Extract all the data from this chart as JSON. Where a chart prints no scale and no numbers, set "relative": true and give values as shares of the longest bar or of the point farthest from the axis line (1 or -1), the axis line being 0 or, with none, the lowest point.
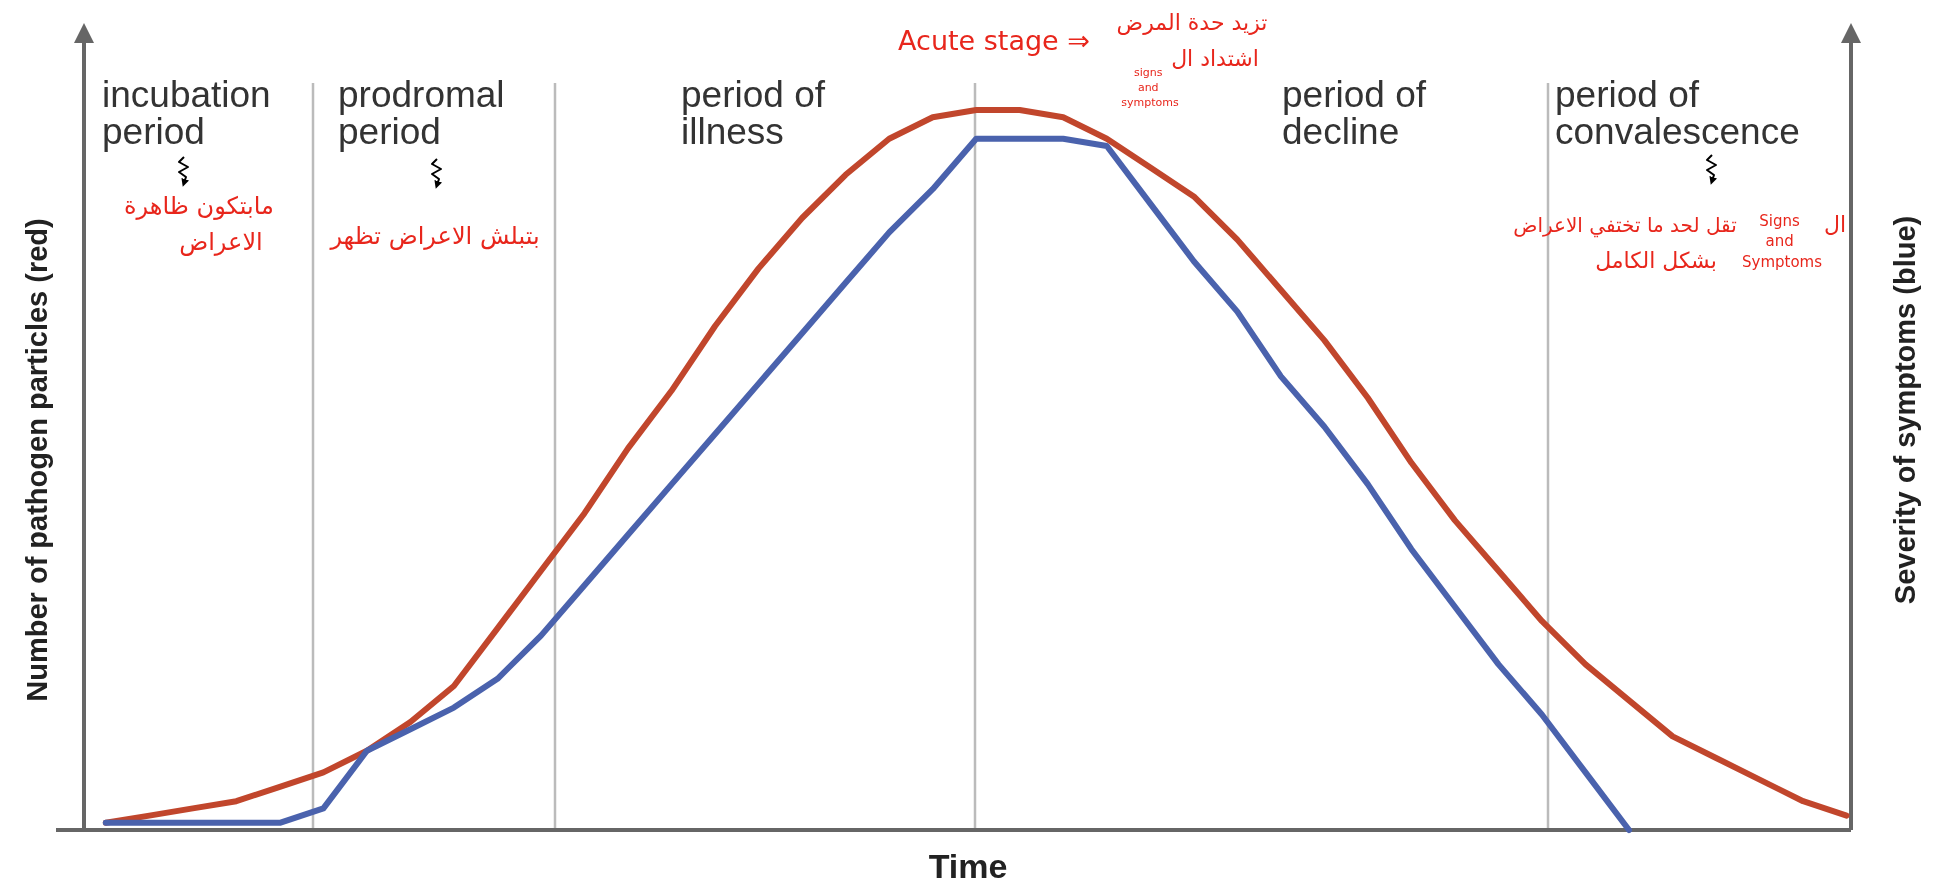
{
  "chart_data": {
    "type": "line",
    "xlabel": "Time",
    "ylabel": "Number of pathogen particles (red)",
    "y2label": "Severity of symptoms (blue)",
    "relative": true,
    "categories": [
      null,
      null,
      null,
      null,
      null,
      null,
      null,
      null,
      null,
      null,
      null,
      null,
      null,
      null,
      null,
      null,
      null,
      null,
      null,
      null,
      null,
      null,
      null,
      null,
      null,
      null,
      null,
      null,
      null,
      null,
      null,
      null,
      null,
      null,
      null,
      null,
      null,
      null,
      null,
      null,
      null
    ],
    "series": [
      {
        "color": "#c1462c",
        "values": [
          0.01,
          0.02,
          0.03,
          0.04,
          0.06,
          0.08,
          0.11,
          0.15,
          0.2,
          0.28,
          0.36,
          0.44,
          0.53,
          0.61,
          0.7,
          0.78,
          0.85,
          0.91,
          0.96,
          0.99,
          1,
          1,
          0.99,
          0.96,
          0.92,
          0.88,
          0.82,
          0.75,
          0.68,
          0.6,
          0.51,
          0.43,
          0.36,
          0.29,
          0.23,
          0.18,
          0.13,
          0.1,
          0.07,
          0.04,
          0.02
        ]
      },
      {
        "color": "#4a62ad",
        "values": [
          0.01,
          0.01,
          0.01,
          0.01,
          0.01,
          0.03,
          0.11,
          0.14,
          0.17,
          0.21,
          0.27,
          0.34,
          0.41,
          0.48,
          0.55,
          0.62,
          0.69,
          0.76,
          0.83,
          0.89,
          0.96,
          0.96,
          0.96,
          0.95,
          0.87,
          0.79,
          0.72,
          0.63,
          0.56,
          0.48,
          0.39,
          0.31,
          0.23,
          0.16,
          0.08,
          0,
          null,
          null,
          null,
          null,
          null
        ]
      }
    ],
    "annotations": [
      "incubation period",
      "prodromal period",
      "period of illness",
      "period of decline",
      "period of convalescence",
      "Acute stage ⇒",
      "تزيد حدة المرض",
      "اشتداد ال",
      "signs and symptoms",
      "مابتكون ظاهرة",
      "الاعراض",
      "بتبلش الاعراض تظهر",
      "تقل لحد ما تختفي الاعراض",
      "بشكل الكامل",
      "Signs and Symptoms",
      "ال"
    ]
  }
}
